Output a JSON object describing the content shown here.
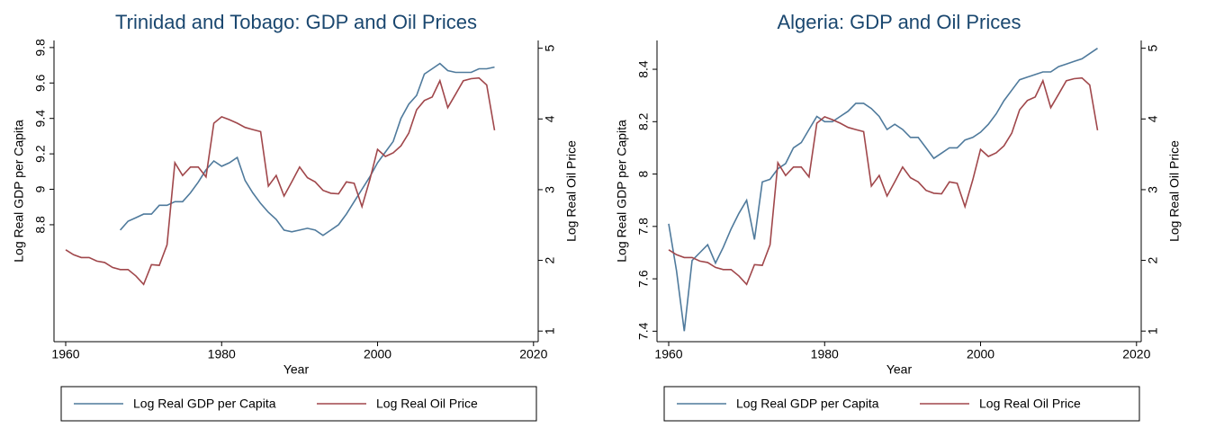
{
  "chart_data": [
    {
      "type": "line",
      "title": "Trinidad and Tobago: GDP and Oil Prices",
      "x_label": "Year",
      "y_label": "Log Real GDP per Capita",
      "y2_label": "Log Real Oil Price",
      "x": [
        1960,
        1961,
        1962,
        1963,
        1964,
        1965,
        1966,
        1967,
        1968,
        1969,
        1970,
        1971,
        1972,
        1973,
        1974,
        1975,
        1976,
        1977,
        1978,
        1979,
        1980,
        1981,
        1982,
        1983,
        1984,
        1985,
        1986,
        1987,
        1988,
        1989,
        1990,
        1991,
        1992,
        1993,
        1994,
        1995,
        1996,
        1997,
        1998,
        1999,
        2000,
        2001,
        2002,
        2003,
        2004,
        2005,
        2006,
        2007,
        2008,
        2009,
        2010,
        2011,
        2012,
        2013,
        2014,
        2015
      ],
      "xlim": [
        1958.5,
        2020.6
      ],
      "xticks": [
        1960,
        1980,
        2000,
        2020
      ],
      "ylim": [
        8.14,
        9.84
      ],
      "yticks": [
        8.8,
        9,
        9.2,
        9.4,
        9.6,
        9.8
      ],
      "y2lim": [
        0.85,
        5.11
      ],
      "y2ticks": [
        1,
        2,
        3,
        4,
        5
      ],
      "series": [
        {
          "name": "Log Real GDP per Capita",
          "color": "#4f7a9c",
          "values": [
            null,
            null,
            null,
            null,
            null,
            null,
            null,
            8.77,
            8.82,
            8.84,
            8.86,
            8.86,
            8.91,
            8.91,
            8.93,
            8.93,
            8.98,
            9.04,
            9.11,
            9.16,
            9.13,
            9.15,
            9.18,
            9.05,
            8.98,
            8.92,
            8.87,
            8.83,
            8.77,
            8.76,
            8.77,
            8.78,
            8.77,
            8.74,
            8.77,
            8.8,
            8.86,
            8.93,
            9.0,
            9.07,
            9.15,
            9.21,
            9.27,
            9.4,
            9.48,
            9.53,
            9.65,
            9.68,
            9.71,
            9.67,
            9.66,
            9.66,
            9.66,
            9.68,
            9.68,
            9.69
          ]
        },
        {
          "name": "Log Real Oil Price",
          "color": "#a0474b",
          "axis": "y2",
          "values": [
            2.15,
            2.08,
            2.04,
            2.04,
            1.99,
            1.97,
            1.9,
            1.87,
            1.87,
            1.78,
            1.66,
            1.94,
            1.93,
            2.22,
            3.38,
            3.2,
            3.32,
            3.32,
            3.18,
            3.94,
            4.03,
            3.99,
            3.94,
            3.88,
            3.85,
            3.82,
            3.05,
            3.2,
            2.91,
            3.11,
            3.32,
            3.17,
            3.11,
            2.99,
            2.95,
            2.94,
            3.11,
            3.09,
            2.76,
            3.14,
            3.57,
            3.47,
            3.52,
            3.62,
            3.8,
            4.13,
            4.26,
            4.31,
            4.54,
            4.16,
            4.35,
            4.54,
            4.57,
            4.58,
            4.48,
            3.84
          ]
        }
      ]
    },
    {
      "type": "line",
      "title": "Algeria: GDP and Oil Prices",
      "x_label": "Year",
      "y_label": "Log Real GDP per Capita",
      "y2_label": "Log Real Oil Price",
      "x": [
        1960,
        1961,
        1962,
        1963,
        1964,
        1965,
        1966,
        1967,
        1968,
        1969,
        1970,
        1971,
        1972,
        1973,
        1974,
        1975,
        1976,
        1977,
        1978,
        1979,
        1980,
        1981,
        1982,
        1983,
        1984,
        1985,
        1986,
        1987,
        1988,
        1989,
        1990,
        1991,
        1992,
        1993,
        1994,
        1995,
        1996,
        1997,
        1998,
        1999,
        2000,
        2001,
        2002,
        2003,
        2004,
        2005,
        2006,
        2007,
        2008,
        2009,
        2010,
        2011,
        2012,
        2013,
        2014,
        2015
      ],
      "xlim": [
        1958.5,
        2020.6
      ],
      "xticks": [
        1960,
        1980,
        2000,
        2020
      ],
      "ylim": [
        7.36,
        8.51
      ],
      "yticks": [
        7.4,
        7.6,
        7.8,
        8,
        8.2,
        8.4
      ],
      "y2lim": [
        0.85,
        5.11
      ],
      "y2ticks": [
        1,
        2,
        3,
        4,
        5
      ],
      "series": [
        {
          "name": "Log Real GDP per Capita",
          "color": "#4f7a9c",
          "values": [
            7.81,
            7.63,
            7.4,
            7.67,
            7.7,
            7.73,
            7.66,
            7.72,
            7.79,
            7.85,
            7.9,
            7.75,
            7.97,
            7.98,
            8.02,
            8.04,
            8.1,
            8.12,
            8.17,
            8.22,
            8.2,
            8.2,
            8.22,
            8.24,
            8.27,
            8.27,
            8.25,
            8.22,
            8.17,
            8.19,
            8.17,
            8.14,
            8.14,
            8.1,
            8.06,
            8.08,
            8.1,
            8.1,
            8.13,
            8.14,
            8.16,
            8.19,
            8.23,
            8.28,
            8.32,
            8.36,
            8.37,
            8.38,
            8.39,
            8.39,
            8.41,
            8.42,
            8.43,
            8.44,
            8.46,
            8.48
          ]
        },
        {
          "name": "Log Real Oil Price",
          "color": "#a0474b",
          "axis": "y2",
          "values": [
            2.15,
            2.08,
            2.04,
            2.04,
            1.99,
            1.97,
            1.9,
            1.87,
            1.87,
            1.78,
            1.66,
            1.94,
            1.93,
            2.22,
            3.38,
            3.2,
            3.32,
            3.32,
            3.18,
            3.94,
            4.03,
            3.99,
            3.94,
            3.88,
            3.85,
            3.82,
            3.05,
            3.2,
            2.91,
            3.11,
            3.32,
            3.17,
            3.11,
            2.99,
            2.95,
            2.94,
            3.11,
            3.09,
            2.76,
            3.14,
            3.57,
            3.47,
            3.52,
            3.62,
            3.8,
            4.13,
            4.26,
            4.31,
            4.54,
            4.16,
            4.35,
            4.54,
            4.57,
            4.58,
            4.48,
            3.84
          ]
        }
      ]
    }
  ]
}
